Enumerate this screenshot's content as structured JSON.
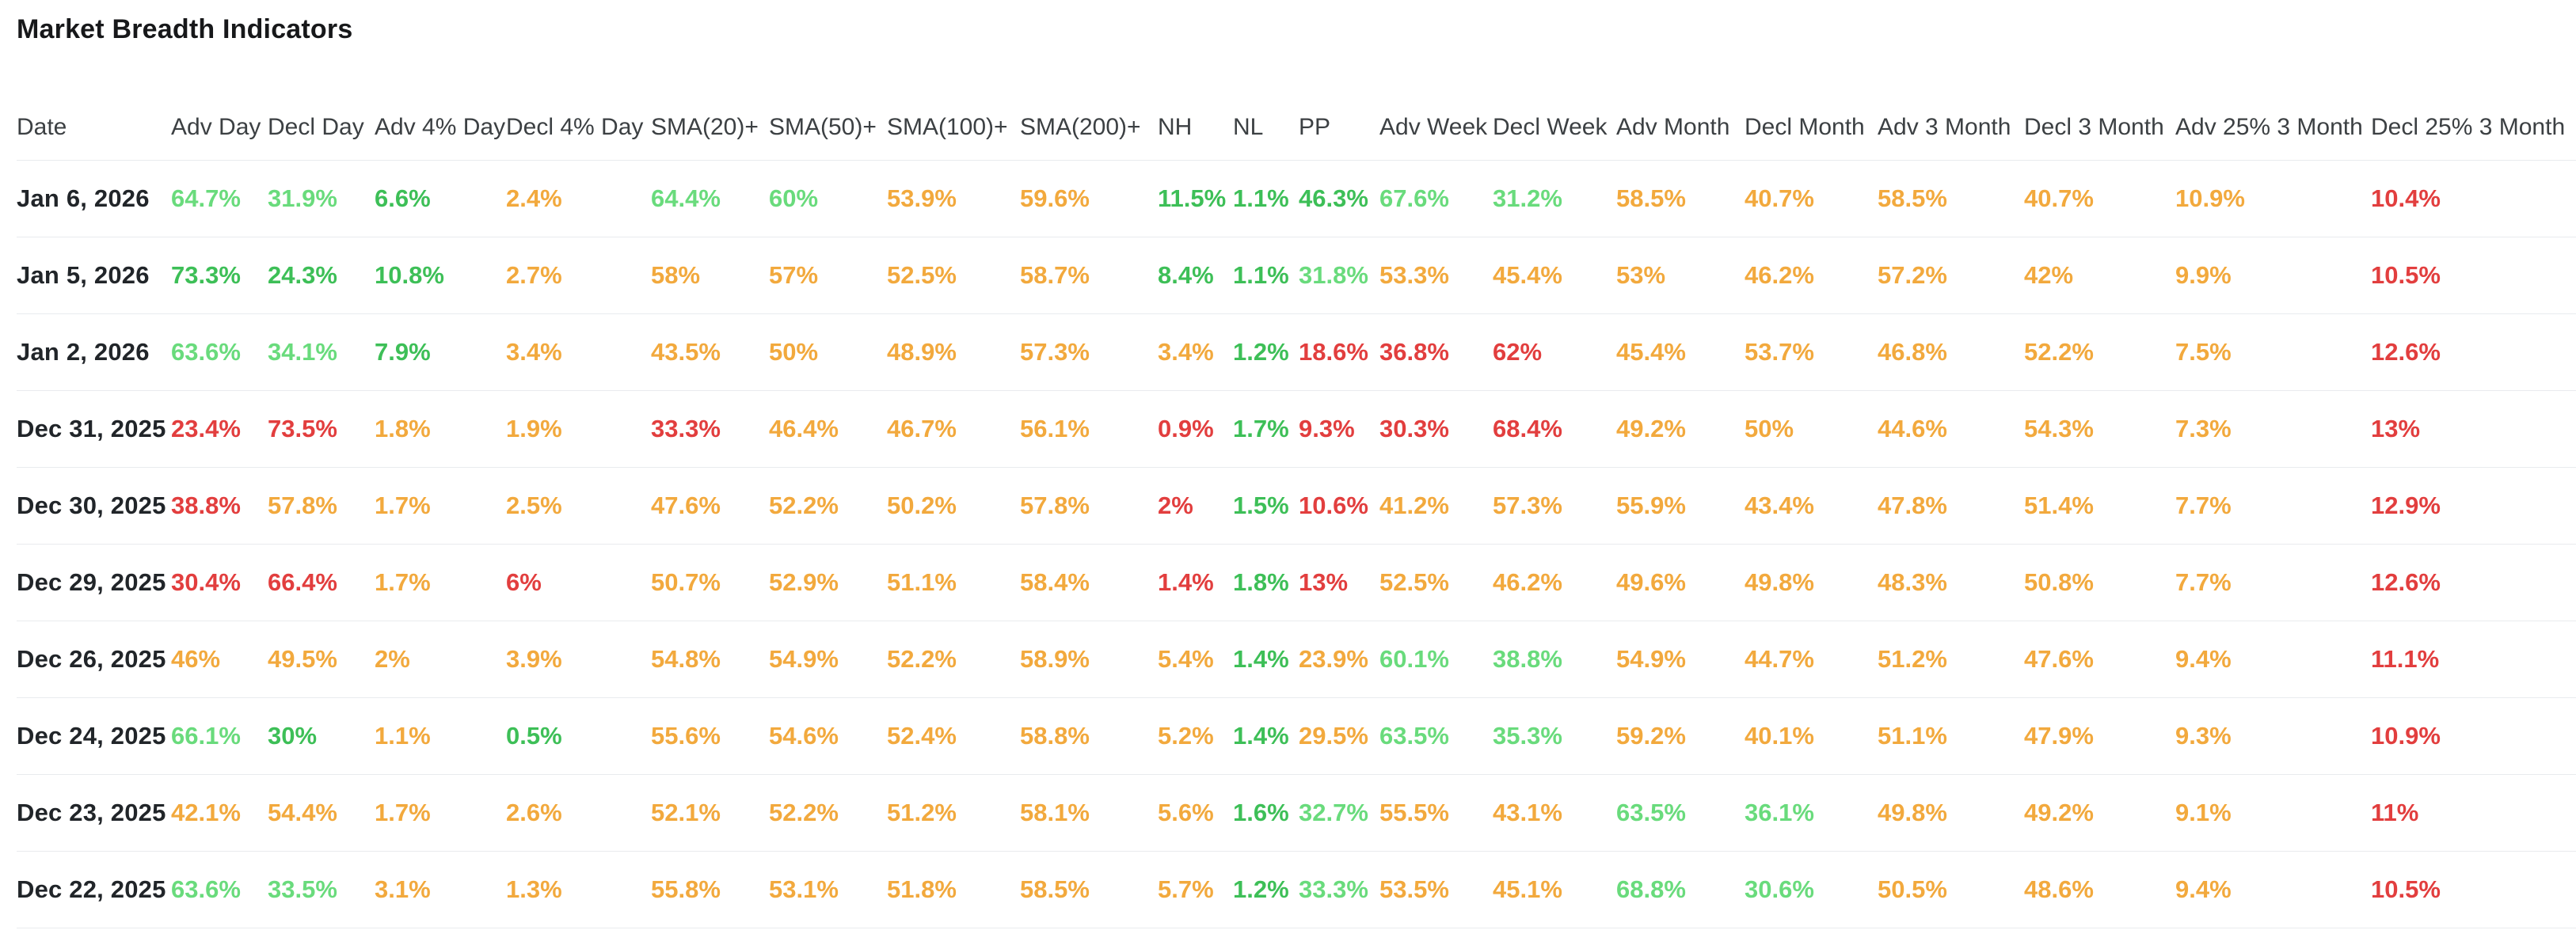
{
  "title": "Market Breadth Indicators",
  "colors": {
    "lg": "#69db7c",
    "g": "#3dbf57",
    "a": "#f2a93d",
    "r": "#e23e3e",
    "date_text": "#212529",
    "header_text": "#3c4043",
    "divider": "#e9ebee"
  },
  "table": {
    "columns": [
      "Date",
      "Adv Day",
      "Decl Day",
      "Adv 4% Day",
      "Decl 4% Day",
      "SMA(20)+",
      "SMA(50)+",
      "SMA(100)+",
      "SMA(200)+",
      "NH",
      "NL",
      "PP",
      "Adv Week",
      "Decl Week",
      "Adv Month",
      "Decl Month",
      "Adv 3 Month",
      "Decl 3 Month",
      "Adv 25% 3 Month",
      "Decl 25% 3 Month"
    ],
    "rows": [
      {
        "date": "Jan 6, 2026",
        "values": [
          [
            "64.7%",
            "lg"
          ],
          [
            "31.9%",
            "lg"
          ],
          [
            "6.6%",
            "g"
          ],
          [
            "2.4%",
            "a"
          ],
          [
            "64.4%",
            "lg"
          ],
          [
            "60%",
            "lg"
          ],
          [
            "53.9%",
            "a"
          ],
          [
            "59.6%",
            "a"
          ],
          [
            "11.5%",
            "g"
          ],
          [
            "1.1%",
            "g"
          ],
          [
            "46.3%",
            "g"
          ],
          [
            "67.6%",
            "lg"
          ],
          [
            "31.2%",
            "lg"
          ],
          [
            "58.5%",
            "a"
          ],
          [
            "40.7%",
            "a"
          ],
          [
            "58.5%",
            "a"
          ],
          [
            "40.7%",
            "a"
          ],
          [
            "10.9%",
            "a"
          ],
          [
            "10.4%",
            "r"
          ]
        ]
      },
      {
        "date": "Jan 5, 2026",
        "values": [
          [
            "73.3%",
            "g"
          ],
          [
            "24.3%",
            "g"
          ],
          [
            "10.8%",
            "g"
          ],
          [
            "2.7%",
            "a"
          ],
          [
            "58%",
            "a"
          ],
          [
            "57%",
            "a"
          ],
          [
            "52.5%",
            "a"
          ],
          [
            "58.7%",
            "a"
          ],
          [
            "8.4%",
            "g"
          ],
          [
            "1.1%",
            "g"
          ],
          [
            "31.8%",
            "lg"
          ],
          [
            "53.3%",
            "a"
          ],
          [
            "45.4%",
            "a"
          ],
          [
            "53%",
            "a"
          ],
          [
            "46.2%",
            "a"
          ],
          [
            "57.2%",
            "a"
          ],
          [
            "42%",
            "a"
          ],
          [
            "9.9%",
            "a"
          ],
          [
            "10.5%",
            "r"
          ]
        ]
      },
      {
        "date": "Jan 2, 2026",
        "values": [
          [
            "63.6%",
            "lg"
          ],
          [
            "34.1%",
            "lg"
          ],
          [
            "7.9%",
            "g"
          ],
          [
            "3.4%",
            "a"
          ],
          [
            "43.5%",
            "a"
          ],
          [
            "50%",
            "a"
          ],
          [
            "48.9%",
            "a"
          ],
          [
            "57.3%",
            "a"
          ],
          [
            "3.4%",
            "a"
          ],
          [
            "1.2%",
            "g"
          ],
          [
            "18.6%",
            "r"
          ],
          [
            "36.8%",
            "r"
          ],
          [
            "62%",
            "r"
          ],
          [
            "45.4%",
            "a"
          ],
          [
            "53.7%",
            "a"
          ],
          [
            "46.8%",
            "a"
          ],
          [
            "52.2%",
            "a"
          ],
          [
            "7.5%",
            "a"
          ],
          [
            "12.6%",
            "r"
          ]
        ]
      },
      {
        "date": "Dec 31, 2025",
        "values": [
          [
            "23.4%",
            "r"
          ],
          [
            "73.5%",
            "r"
          ],
          [
            "1.8%",
            "a"
          ],
          [
            "1.9%",
            "a"
          ],
          [
            "33.3%",
            "r"
          ],
          [
            "46.4%",
            "a"
          ],
          [
            "46.7%",
            "a"
          ],
          [
            "56.1%",
            "a"
          ],
          [
            "0.9%",
            "r"
          ],
          [
            "1.7%",
            "g"
          ],
          [
            "9.3%",
            "r"
          ],
          [
            "30.3%",
            "r"
          ],
          [
            "68.4%",
            "r"
          ],
          [
            "49.2%",
            "a"
          ],
          [
            "50%",
            "a"
          ],
          [
            "44.6%",
            "a"
          ],
          [
            "54.3%",
            "a"
          ],
          [
            "7.3%",
            "a"
          ],
          [
            "13%",
            "r"
          ]
        ]
      },
      {
        "date": "Dec 30, 2025",
        "values": [
          [
            "38.8%",
            "r"
          ],
          [
            "57.8%",
            "a"
          ],
          [
            "1.7%",
            "a"
          ],
          [
            "2.5%",
            "a"
          ],
          [
            "47.6%",
            "a"
          ],
          [
            "52.2%",
            "a"
          ],
          [
            "50.2%",
            "a"
          ],
          [
            "57.8%",
            "a"
          ],
          [
            "2%",
            "r"
          ],
          [
            "1.5%",
            "g"
          ],
          [
            "10.6%",
            "r"
          ],
          [
            "41.2%",
            "a"
          ],
          [
            "57.3%",
            "a"
          ],
          [
            "55.9%",
            "a"
          ],
          [
            "43.4%",
            "a"
          ],
          [
            "47.8%",
            "a"
          ],
          [
            "51.4%",
            "a"
          ],
          [
            "7.7%",
            "a"
          ],
          [
            "12.9%",
            "r"
          ]
        ]
      },
      {
        "date": "Dec 29, 2025",
        "values": [
          [
            "30.4%",
            "r"
          ],
          [
            "66.4%",
            "r"
          ],
          [
            "1.7%",
            "a"
          ],
          [
            "6%",
            "r"
          ],
          [
            "50.7%",
            "a"
          ],
          [
            "52.9%",
            "a"
          ],
          [
            "51.1%",
            "a"
          ],
          [
            "58.4%",
            "a"
          ],
          [
            "1.4%",
            "r"
          ],
          [
            "1.8%",
            "g"
          ],
          [
            "13%",
            "r"
          ],
          [
            "52.5%",
            "a"
          ],
          [
            "46.2%",
            "a"
          ],
          [
            "49.6%",
            "a"
          ],
          [
            "49.8%",
            "a"
          ],
          [
            "48.3%",
            "a"
          ],
          [
            "50.8%",
            "a"
          ],
          [
            "7.7%",
            "a"
          ],
          [
            "12.6%",
            "r"
          ]
        ]
      },
      {
        "date": "Dec 26, 2025",
        "values": [
          [
            "46%",
            "a"
          ],
          [
            "49.5%",
            "a"
          ],
          [
            "2%",
            "a"
          ],
          [
            "3.9%",
            "a"
          ],
          [
            "54.8%",
            "a"
          ],
          [
            "54.9%",
            "a"
          ],
          [
            "52.2%",
            "a"
          ],
          [
            "58.9%",
            "a"
          ],
          [
            "5.4%",
            "a"
          ],
          [
            "1.4%",
            "g"
          ],
          [
            "23.9%",
            "a"
          ],
          [
            "60.1%",
            "lg"
          ],
          [
            "38.8%",
            "lg"
          ],
          [
            "54.9%",
            "a"
          ],
          [
            "44.7%",
            "a"
          ],
          [
            "51.2%",
            "a"
          ],
          [
            "47.6%",
            "a"
          ],
          [
            "9.4%",
            "a"
          ],
          [
            "11.1%",
            "r"
          ]
        ]
      },
      {
        "date": "Dec 24, 2025",
        "values": [
          [
            "66.1%",
            "lg"
          ],
          [
            "30%",
            "g"
          ],
          [
            "1.1%",
            "a"
          ],
          [
            "0.5%",
            "g"
          ],
          [
            "55.6%",
            "a"
          ],
          [
            "54.6%",
            "a"
          ],
          [
            "52.4%",
            "a"
          ],
          [
            "58.8%",
            "a"
          ],
          [
            "5.2%",
            "a"
          ],
          [
            "1.4%",
            "g"
          ],
          [
            "29.5%",
            "a"
          ],
          [
            "63.5%",
            "lg"
          ],
          [
            "35.3%",
            "lg"
          ],
          [
            "59.2%",
            "a"
          ],
          [
            "40.1%",
            "a"
          ],
          [
            "51.1%",
            "a"
          ],
          [
            "47.9%",
            "a"
          ],
          [
            "9.3%",
            "a"
          ],
          [
            "10.9%",
            "r"
          ]
        ]
      },
      {
        "date": "Dec 23, 2025",
        "values": [
          [
            "42.1%",
            "a"
          ],
          [
            "54.4%",
            "a"
          ],
          [
            "1.7%",
            "a"
          ],
          [
            "2.6%",
            "a"
          ],
          [
            "52.1%",
            "a"
          ],
          [
            "52.2%",
            "a"
          ],
          [
            "51.2%",
            "a"
          ],
          [
            "58.1%",
            "a"
          ],
          [
            "5.6%",
            "a"
          ],
          [
            "1.6%",
            "g"
          ],
          [
            "32.7%",
            "lg"
          ],
          [
            "55.5%",
            "a"
          ],
          [
            "43.1%",
            "a"
          ],
          [
            "63.5%",
            "lg"
          ],
          [
            "36.1%",
            "lg"
          ],
          [
            "49.8%",
            "a"
          ],
          [
            "49.2%",
            "a"
          ],
          [
            "9.1%",
            "a"
          ],
          [
            "11%",
            "r"
          ]
        ]
      },
      {
        "date": "Dec 22, 2025",
        "values": [
          [
            "63.6%",
            "lg"
          ],
          [
            "33.5%",
            "lg"
          ],
          [
            "3.1%",
            "a"
          ],
          [
            "1.3%",
            "a"
          ],
          [
            "55.8%",
            "a"
          ],
          [
            "53.1%",
            "a"
          ],
          [
            "51.8%",
            "a"
          ],
          [
            "58.5%",
            "a"
          ],
          [
            "5.7%",
            "a"
          ],
          [
            "1.2%",
            "g"
          ],
          [
            "33.3%",
            "lg"
          ],
          [
            "53.5%",
            "a"
          ],
          [
            "45.1%",
            "a"
          ],
          [
            "68.8%",
            "lg"
          ],
          [
            "30.6%",
            "lg"
          ],
          [
            "50.5%",
            "a"
          ],
          [
            "48.6%",
            "a"
          ],
          [
            "9.4%",
            "a"
          ],
          [
            "10.5%",
            "r"
          ]
        ]
      }
    ]
  }
}
